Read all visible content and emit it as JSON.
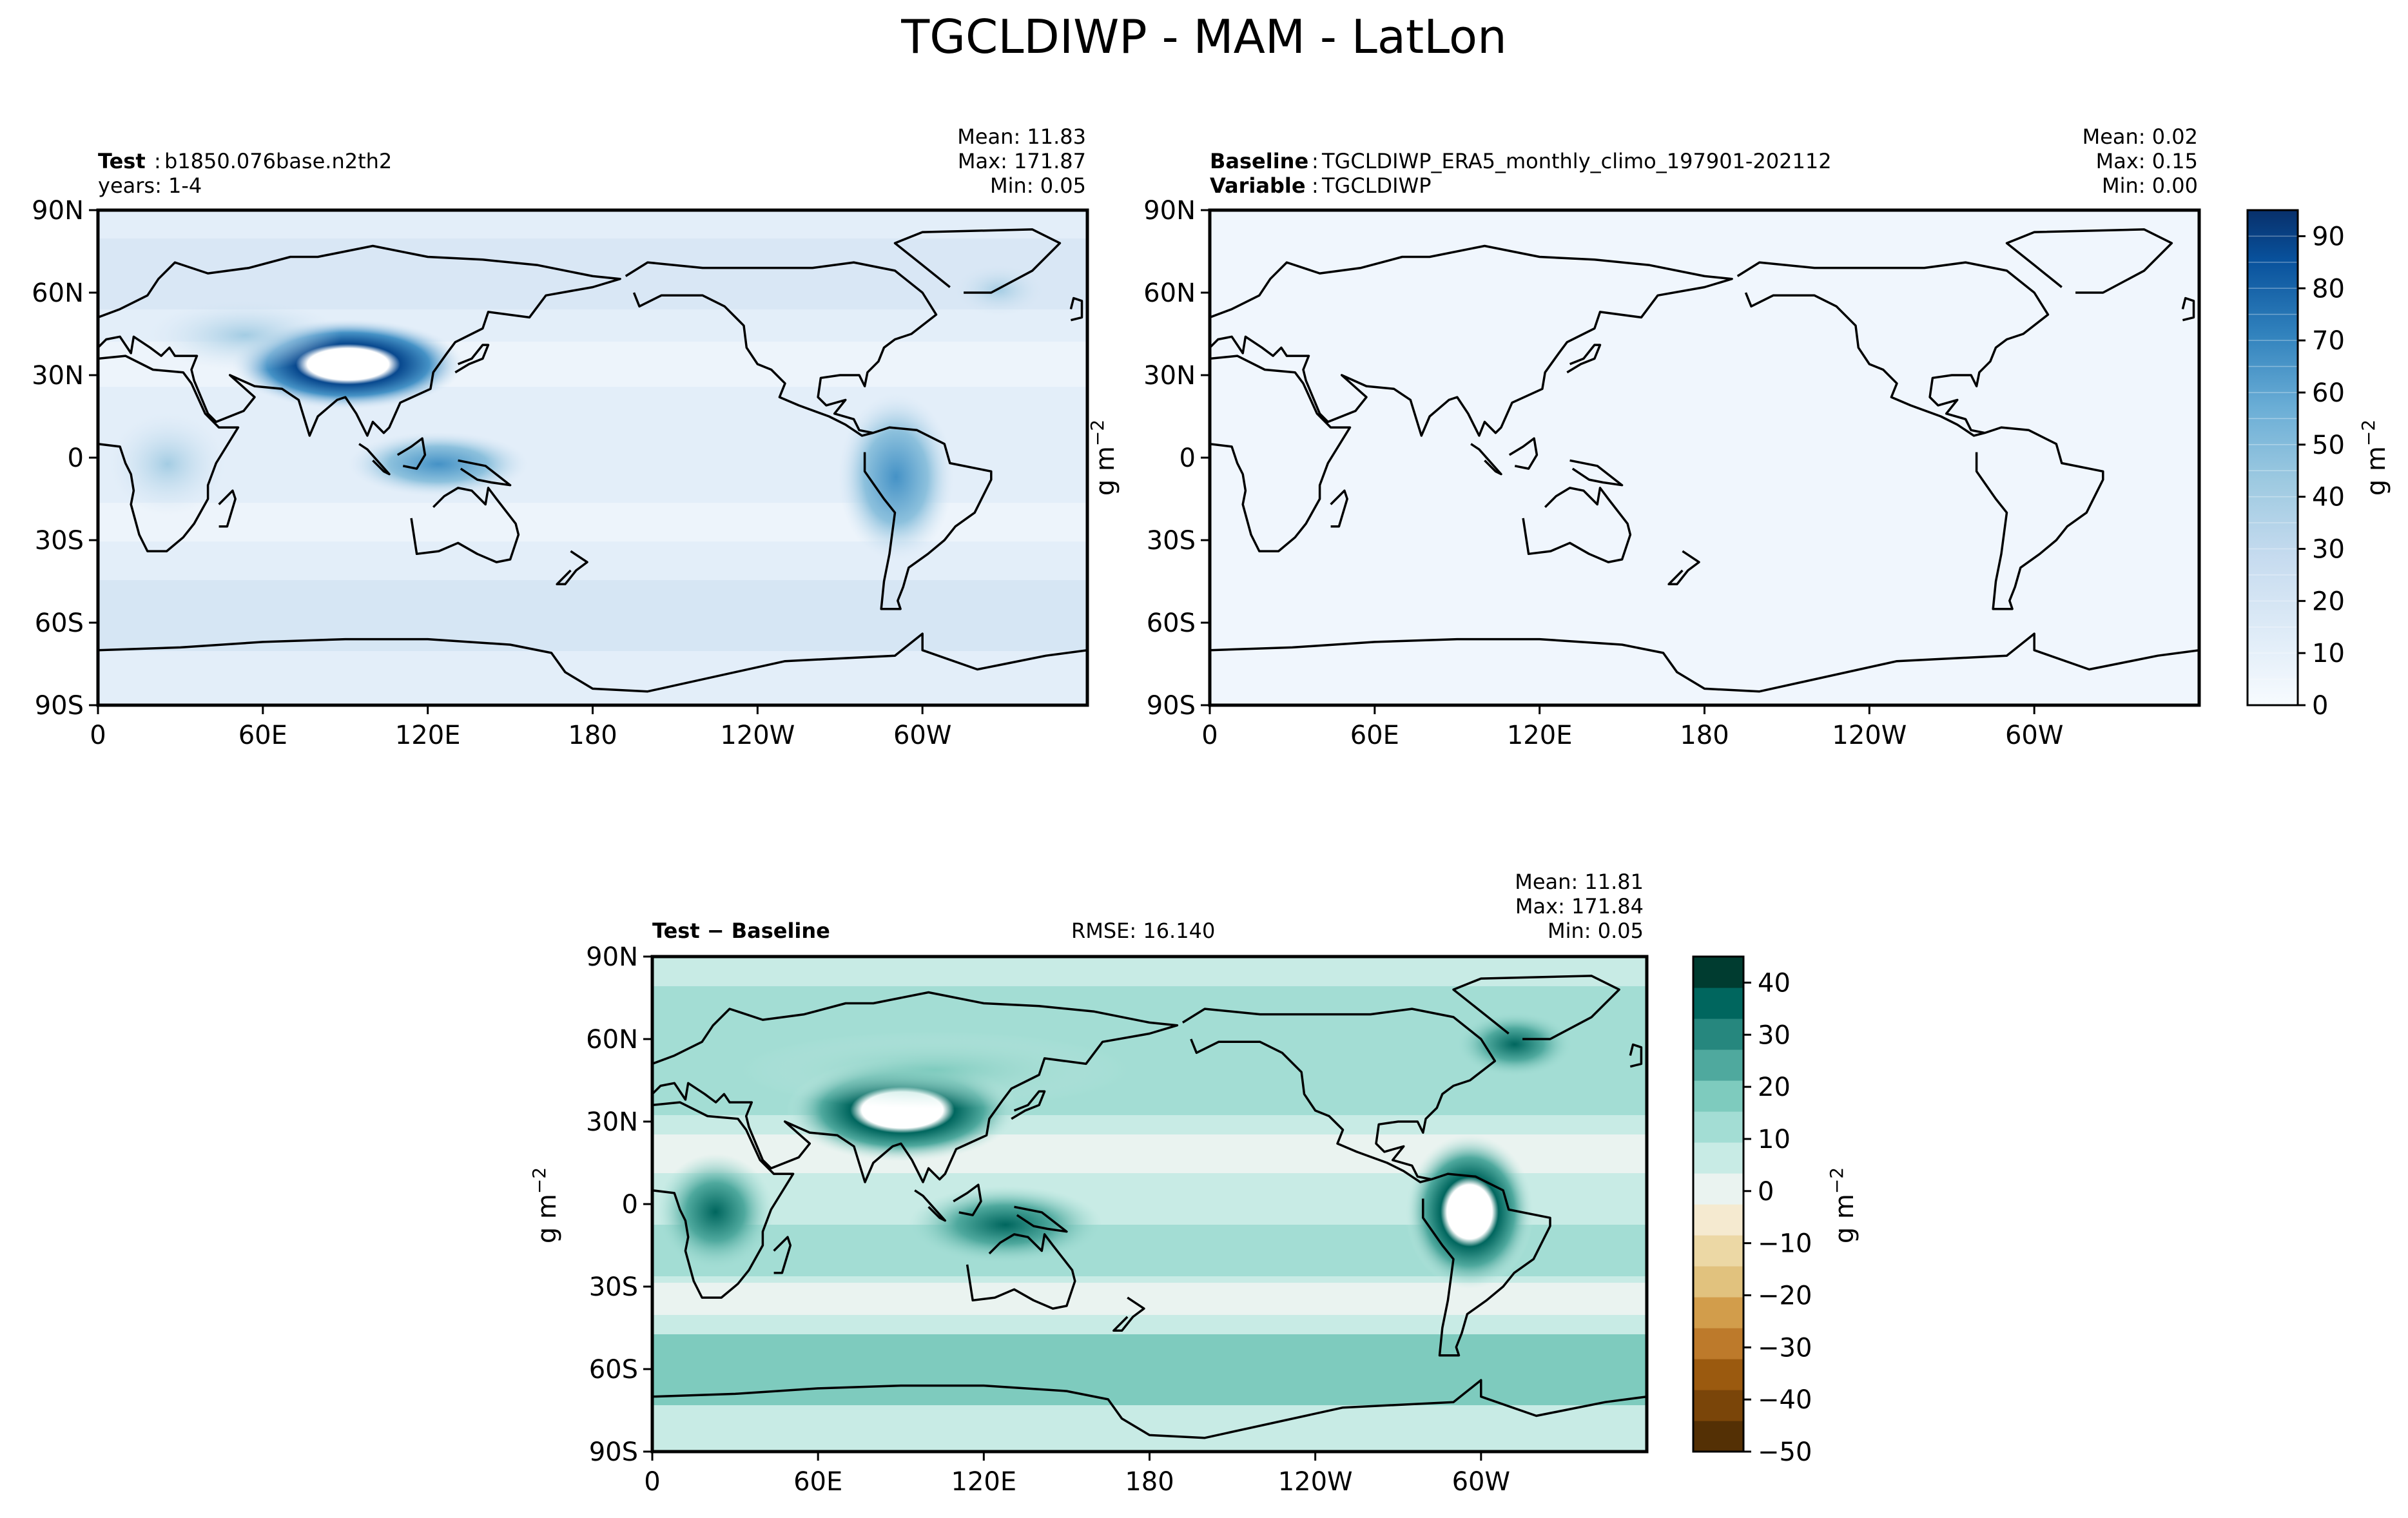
{
  "figure": {
    "title": "TGCLDIWP - MAM - LatLon"
  },
  "colors": {
    "land_outline": "#000000",
    "blues": [
      "#f7fbff",
      "#e3eef9",
      "#d6e6f4",
      "#c9ddf0",
      "#b7d4ea",
      "#a3cce3",
      "#8dc1dd",
      "#75b4d8",
      "#5ba3d0",
      "#4592c6",
      "#3282be",
      "#1f6eb3",
      "#0f5aa3",
      "#08488e",
      "#083570"
    ],
    "brbg": [
      "#543005",
      "#7a4509",
      "#9b5a0f",
      "#bd7a2b",
      "#d29d4b",
      "#e1c27e",
      "#ecd8a5",
      "#f5ead0",
      "#eaf3f0",
      "#c8ebe5",
      "#a3ddd4",
      "#7ecbbe",
      "#4fa99e",
      "#26877e",
      "#00665e",
      "#003c30"
    ]
  },
  "chart_data": [
    {
      "type": "heatmap",
      "name": "test-map",
      "left_header": {
        "label": "Test",
        "sep": ":",
        "case": "b1850.076base.n2th2",
        "years": "years: 1-4"
      },
      "stats": {
        "mean": "Mean: 11.83",
        "max": "Max: 171.87",
        "min": "Min:  0.05"
      },
      "xlabel": "",
      "ylabel": "",
      "lon_ticks": [
        "0",
        "60E",
        "120E",
        "180",
        "120W",
        "60W"
      ],
      "lat_ticks": [
        "90N",
        "60N",
        "30N",
        "0",
        "30S",
        "60S",
        "90S"
      ],
      "xlim": [
        0,
        360
      ],
      "ylim": [
        -90,
        90
      ],
      "colormap": "Blues",
      "levels": [
        0,
        5,
        10,
        15,
        20,
        25,
        30,
        35,
        40,
        45,
        50,
        55,
        60,
        65,
        70,
        80,
        90,
        95
      ],
      "features": [
        {
          "name": "tibetan-plateau-max",
          "lon": 87,
          "lat": 34,
          "value": 171.87
        },
        {
          "name": "amazon-max",
          "lon": 295,
          "lat": -8,
          "value": 60
        },
        {
          "name": "maritime-continent",
          "lon": 120,
          "lat": 0,
          "value": 45
        },
        {
          "name": "central-africa",
          "lon": 20,
          "lat": 0,
          "value": 30
        }
      ]
    },
    {
      "type": "heatmap",
      "name": "baseline-map",
      "left_header": {
        "label": "Baseline",
        "sep": ":",
        "case": "TGCLDIWP_ERA5_monthly_climo_197901-202112",
        "variable_label": "Variable",
        "variable": "TGCLDIWP"
      },
      "stats": {
        "mean": "Mean:  0.02",
        "max": "Max:  0.15",
        "min": "Min:  0.00"
      },
      "lon_ticks": [
        "0",
        "60E",
        "120E",
        "180",
        "120W",
        "60W"
      ],
      "lat_ticks": [
        "90N",
        "60N",
        "30N",
        "0",
        "30S",
        "60S",
        "90S"
      ],
      "xlim": [
        0,
        360
      ],
      "ylim": [
        -90,
        90
      ],
      "ylabel": "g m",
      "ylabel_sup": "−2",
      "colorbar": {
        "ticks": [
          "0",
          "10",
          "20",
          "30",
          "40",
          "50",
          "60",
          "70",
          "80",
          "90"
        ],
        "range": [
          0,
          95
        ],
        "label": "g m",
        "label_sup": "−2"
      }
    },
    {
      "type": "heatmap",
      "name": "difference-map",
      "left_header": {
        "label": "Test − Baseline"
      },
      "rmse": "RMSE: 16.140",
      "stats": {
        "mean": "Mean: 11.81",
        "max": "Max: 171.84",
        "min": "Min:  0.05"
      },
      "lon_ticks": [
        "0",
        "60E",
        "120E",
        "180",
        "120W",
        "60W"
      ],
      "lat_ticks": [
        "90N",
        "60N",
        "30N",
        "0",
        "30S",
        "60S",
        "90S"
      ],
      "xlim": [
        0,
        360
      ],
      "ylim": [
        -90,
        90
      ],
      "ylabel": "g m",
      "ylabel_sup": "−2",
      "colorbar": {
        "ticks": [
          "40",
          "30",
          "20",
          "10",
          "0",
          "−10",
          "−20",
          "−30",
          "−40",
          "−50"
        ],
        "range": [
          -50,
          45
        ],
        "label": "g m",
        "label_sup": "−2"
      }
    }
  ]
}
